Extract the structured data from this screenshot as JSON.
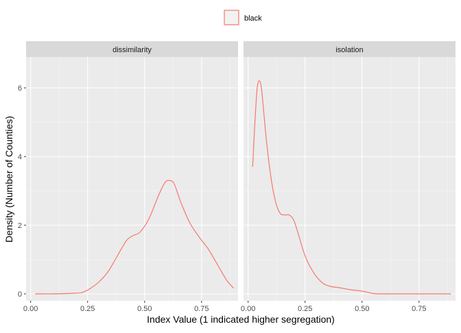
{
  "chart_data": {
    "type": "line",
    "xlabel": "Index Value (1 indicated higher segregation)",
    "ylabel": "Density (Number of Counties)",
    "xlim": [
      -0.02,
      0.91
    ],
    "ylim": [
      -0.2,
      6.9
    ],
    "x_ticks": [
      0.0,
      0.25,
      0.5,
      0.75
    ],
    "x_tick_labels": [
      "0.00",
      "0.25",
      "0.50",
      "0.75"
    ],
    "y_ticks": [
      0,
      2,
      4,
      6
    ],
    "y_tick_labels": [
      "0",
      "2",
      "4",
      "6"
    ],
    "grid": true,
    "legend": {
      "position": "top",
      "entries": [
        {
          "label": "black",
          "color": "#F8766D"
        }
      ]
    },
    "panels": [
      {
        "label": "dissimilarity",
        "series": [
          {
            "name": "black",
            "color": "#F8766D",
            "x": [
              0.02,
              0.1,
              0.2,
              0.23,
              0.26,
              0.3,
              0.34,
              0.38,
              0.42,
              0.45,
              0.48,
              0.52,
              0.56,
              0.59,
              0.61,
              0.63,
              0.66,
              0.7,
              0.74,
              0.78,
              0.82,
              0.86,
              0.89
            ],
            "values": [
              0.0,
              0.0,
              0.02,
              0.05,
              0.15,
              0.35,
              0.65,
              1.1,
              1.55,
              1.7,
              1.8,
              2.2,
              2.85,
              3.25,
              3.3,
              3.2,
              2.65,
              2.05,
              1.65,
              1.3,
              0.85,
              0.4,
              0.17
            ]
          }
        ]
      },
      {
        "label": "isolation",
        "series": [
          {
            "name": "black",
            "color": "#F8766D",
            "x": [
              0.02,
              0.03,
              0.04,
              0.05,
              0.06,
              0.08,
              0.1,
              0.12,
              0.14,
              0.16,
              0.18,
              0.2,
              0.22,
              0.24,
              0.26,
              0.28,
              0.3,
              0.33,
              0.36,
              0.4,
              0.45,
              0.5,
              0.55,
              0.6,
              0.7,
              0.8,
              0.89
            ],
            "values": [
              3.7,
              5.0,
              6.0,
              6.2,
              5.9,
              4.5,
              3.4,
              2.7,
              2.35,
              2.3,
              2.3,
              2.15,
              1.75,
              1.3,
              0.95,
              0.7,
              0.5,
              0.3,
              0.22,
              0.18,
              0.12,
              0.08,
              0.01,
              0.0,
              0.0,
              0.0,
              0.0
            ]
          }
        ]
      }
    ]
  }
}
